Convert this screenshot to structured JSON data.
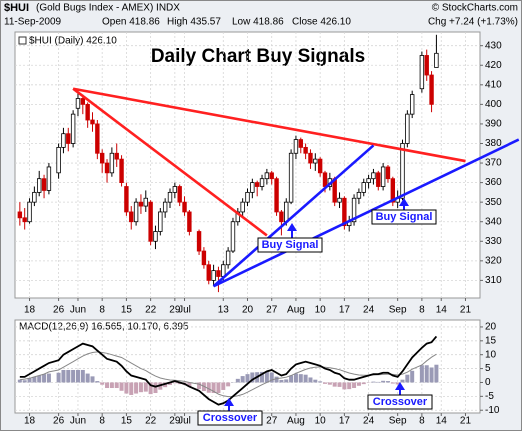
{
  "header": {
    "symbol": "$HUI",
    "name": "(Gold Bugs Index - AMEX) INDX",
    "date": "11-Sep-2009",
    "open": "Open 418.86",
    "high": "High 435.57",
    "low": "Low 418.86",
    "close": "Close 426.10",
    "change": "Chg +7.24 (+1.73%)",
    "source": "© StockCharts.com"
  },
  "chart_data": [
    {
      "type": "candlestick",
      "title": "Daily Chart Buy Signals",
      "legend": "$HUI (Daily) 426.10",
      "x": [
        "2009-05-14",
        "2009-05-15",
        "2009-05-18",
        "2009-05-19",
        "2009-05-20",
        "2009-05-21",
        "2009-05-22",
        "2009-05-26",
        "2009-05-27",
        "2009-05-28",
        "2009-05-29",
        "2009-06-01",
        "2009-06-02",
        "2009-06-03",
        "2009-06-04",
        "2009-06-05",
        "2009-06-08",
        "2009-06-09",
        "2009-06-10",
        "2009-06-11",
        "2009-06-12",
        "2009-06-15",
        "2009-06-16",
        "2009-06-17",
        "2009-06-18",
        "2009-06-19",
        "2009-06-22",
        "2009-06-23",
        "2009-06-24",
        "2009-06-25",
        "2009-06-26",
        "2009-06-29",
        "2009-06-30",
        "2009-07-01",
        "2009-07-02",
        "2009-07-06",
        "2009-07-07",
        "2009-07-08",
        "2009-07-09",
        "2009-07-10",
        "2009-07-13",
        "2009-07-14",
        "2009-07-15",
        "2009-07-16",
        "2009-07-17",
        "2009-07-20",
        "2009-07-21",
        "2009-07-22",
        "2009-07-23",
        "2009-07-24",
        "2009-07-27",
        "2009-07-28",
        "2009-07-29",
        "2009-07-30",
        "2009-07-31",
        "2009-08-03",
        "2009-08-04",
        "2009-08-05",
        "2009-08-06",
        "2009-08-07",
        "2009-08-10",
        "2009-08-11",
        "2009-08-12",
        "2009-08-13",
        "2009-08-14",
        "2009-08-17",
        "2009-08-18",
        "2009-08-19",
        "2009-08-20",
        "2009-08-21",
        "2009-08-24",
        "2009-08-25",
        "2009-08-26",
        "2009-08-27",
        "2009-08-28",
        "2009-08-31",
        "2009-09-01",
        "2009-09-02",
        "2009-09-03",
        "2009-09-04",
        "2009-09-08",
        "2009-09-09",
        "2009-09-10",
        "2009-09-11"
      ],
      "ohlc": [
        [
          345,
          350,
          338,
          342
        ],
        [
          342,
          347,
          336,
          340
        ],
        [
          340,
          352,
          339,
          350
        ],
        [
          350,
          358,
          348,
          355
        ],
        [
          355,
          366,
          353,
          362
        ],
        [
          362,
          364,
          352,
          356
        ],
        [
          356,
          370,
          354,
          368
        ],
        [
          365,
          380,
          362,
          378
        ],
        [
          378,
          388,
          375,
          385
        ],
        [
          385,
          388,
          376,
          380
        ],
        [
          380,
          397,
          378,
          395
        ],
        [
          398,
          406,
          394,
          403
        ],
        [
          403,
          405,
          395,
          400
        ],
        [
          400,
          401,
          388,
          392
        ],
        [
          392,
          396,
          386,
          390
        ],
        [
          390,
          392,
          372,
          375
        ],
        [
          375,
          377,
          365,
          370
        ],
        [
          370,
          372,
          360,
          365
        ],
        [
          365,
          378,
          363,
          375
        ],
        [
          375,
          380,
          368,
          372
        ],
        [
          372,
          374,
          358,
          360
        ],
        [
          358,
          360,
          343,
          345
        ],
        [
          345,
          348,
          336,
          340
        ],
        [
          340,
          352,
          338,
          350
        ],
        [
          350,
          354,
          344,
          348
        ],
        [
          348,
          356,
          345,
          352
        ],
        [
          350,
          351,
          328,
          330
        ],
        [
          330,
          338,
          326,
          335
        ],
        [
          335,
          347,
          333,
          345
        ],
        [
          345,
          352,
          342,
          350
        ],
        [
          350,
          357,
          347,
          355
        ],
        [
          355,
          360,
          352,
          358
        ],
        [
          358,
          359,
          348,
          350
        ],
        [
          350,
          353,
          343,
          345
        ],
        [
          345,
          346,
          333,
          335
        ],
        [
          335,
          336,
          323,
          325
        ],
        [
          325,
          327,
          316,
          318
        ],
        [
          318,
          320,
          308,
          310
        ],
        [
          310,
          318,
          307,
          315
        ],
        [
          315,
          317,
          304,
          312
        ],
        [
          312,
          320,
          310,
          318
        ],
        [
          318,
          327,
          316,
          325
        ],
        [
          325,
          342,
          324,
          340
        ],
        [
          340,
          347,
          338,
          345
        ],
        [
          345,
          352,
          342,
          350
        ],
        [
          350,
          357,
          348,
          355
        ],
        [
          355,
          362,
          352,
          360
        ],
        [
          360,
          361,
          353,
          358
        ],
        [
          358,
          364,
          356,
          362
        ],
        [
          362,
          367,
          359,
          365
        ],
        [
          365,
          366,
          359,
          362
        ],
        [
          362,
          363,
          343,
          345
        ],
        [
          345,
          346,
          333,
          340
        ],
        [
          340,
          352,
          338,
          350
        ],
        [
          350,
          377,
          349,
          375
        ],
        [
          375,
          384,
          372,
          382
        ],
        [
          382,
          383,
          375,
          378
        ],
        [
          378,
          380,
          372,
          375
        ],
        [
          375,
          377,
          367,
          370
        ],
        [
          370,
          375,
          366,
          372
        ],
        [
          372,
          373,
          363,
          365
        ],
        [
          365,
          366,
          355,
          358
        ],
        [
          358,
          365,
          356,
          362
        ],
        [
          362,
          363,
          348,
          350
        ],
        [
          350,
          355,
          347,
          352
        ],
        [
          352,
          353,
          336,
          338
        ],
        [
          338,
          343,
          335,
          340
        ],
        [
          340,
          354,
          338,
          352
        ],
        [
          352,
          357,
          349,
          355
        ],
        [
          355,
          362,
          353,
          360
        ],
        [
          360,
          364,
          357,
          362
        ],
        [
          362,
          367,
          359,
          365
        ],
        [
          365,
          366,
          356,
          358
        ],
        [
          358,
          370,
          356,
          368
        ],
        [
          368,
          369,
          360,
          362
        ],
        [
          362,
          363,
          348,
          350
        ],
        [
          350,
          356,
          347,
          352
        ],
        [
          352,
          382,
          351,
          380
        ],
        [
          380,
          397,
          378,
          395
        ],
        [
          395,
          407,
          393,
          405
        ],
        [
          408,
          427,
          406,
          425
        ],
        [
          425,
          428,
          412,
          415
        ],
        [
          415,
          417,
          396,
          400
        ],
        [
          418.86,
          435.57,
          418.86,
          426.1
        ]
      ],
      "up_color": "#000000",
      "down_color": "#cc0000",
      "xlim": [
        "2009-05-13",
        "2009-09-24"
      ],
      "xticks": [
        {
          "value": "2009-05-18",
          "label": "18"
        },
        {
          "value": "2009-05-26",
          "label": "26"
        },
        {
          "value": "2009-06-01",
          "label": "Jun"
        },
        {
          "value": "2009-06-08",
          "label": "8"
        },
        {
          "value": "2009-06-15",
          "label": "15"
        },
        {
          "value": "2009-06-22",
          "label": "22"
        },
        {
          "value": "2009-06-29",
          "label": "29"
        },
        {
          "value": "2009-07-01",
          "label": "Jul"
        },
        {
          "value": "2009-07-13",
          "label": "13"
        },
        {
          "value": "2009-07-20",
          "label": "20"
        },
        {
          "value": "2009-07-27",
          "label": "27"
        },
        {
          "value": "2009-08-03",
          "label": "Aug"
        },
        {
          "value": "2009-08-10",
          "label": "10"
        },
        {
          "value": "2009-08-17",
          "label": "17"
        },
        {
          "value": "2009-08-24",
          "label": "24"
        },
        {
          "value": "2009-09-01",
          "label": "Sep"
        },
        {
          "value": "2009-09-08",
          "label": "8"
        },
        {
          "value": "2009-09-14",
          "label": "14"
        },
        {
          "value": "2009-09-21",
          "label": "21"
        }
      ],
      "ylim": [
        301,
        437
      ],
      "yticks": [
        310,
        320,
        330,
        340,
        350,
        360,
        370,
        380,
        390,
        400,
        410,
        420,
        430
      ],
      "grid": true,
      "trendlines": [
        {
          "color": "#ff2020",
          "from": [
            "2009-05-29",
            408
          ],
          "to": [
            "2009-07-24",
            333
          ]
        },
        {
          "color": "#ff2020",
          "from": [
            "2009-05-29",
            408
          ],
          "to": [
            "2009-09-21",
            371
          ]
        },
        {
          "color": "#1a1aff",
          "from": [
            "2009-07-09",
            307
          ],
          "to": [
            "2009-08-25",
            379
          ]
        },
        {
          "color": "#1a1aff",
          "from": [
            "2009-07-09",
            307
          ],
          "to": [
            "2009-10-06",
            382
          ]
        }
      ],
      "annotations": [
        "Buy Signal",
        "Buy Signal"
      ]
    },
    {
      "type": "macd",
      "legend": "MACD(12,26,9) 16.565, 10.170, 6.395",
      "macd": {
        "color": "#000000",
        "values": [
          2,
          2,
          3,
          4,
          5,
          6,
          7,
          8,
          10,
          11,
          12,
          13,
          14,
          13.5,
          13,
          11.5,
          10,
          8.5,
          8,
          7.5,
          6,
          4,
          2.5,
          2,
          1.5,
          1,
          -1,
          -1.5,
          -1,
          -0.5,
          0,
          0.5,
          0,
          -0.5,
          -1.5,
          -3,
          -4.5,
          -6,
          -7,
          -8,
          -7.5,
          -6.5,
          -5,
          -3.5,
          -2,
          -0.5,
          1,
          2,
          3,
          4,
          4.5,
          3.5,
          2.5,
          3,
          5,
          6.5,
          7,
          7.5,
          7,
          6.5,
          6,
          5,
          4.5,
          3.5,
          3,
          1.5,
          1,
          1,
          1.5,
          2,
          2.5,
          3,
          3,
          3.5,
          3.5,
          2.5,
          2,
          4,
          6.5,
          9,
          12.5,
          14,
          14.5,
          16.565
        ]
      },
      "signal": {
        "color": "#888888",
        "values": [
          1,
          1.2,
          1.5,
          2,
          2.5,
          3,
          3.8,
          4.5,
          5.5,
          6.5,
          7.5,
          8.5,
          9.5,
          10.3,
          10.8,
          11,
          10.8,
          10.5,
          10,
          9.5,
          9,
          8,
          7,
          6,
          5,
          4.3,
          3.2,
          2.3,
          1.6,
          1.2,
          0.9,
          0.8,
          0.6,
          0.4,
          0,
          -0.6,
          -1.4,
          -2.3,
          -3.2,
          -4.2,
          -4.8,
          -5.1,
          -5.1,
          -4.8,
          -4.3,
          -3.5,
          -2.6,
          -1.7,
          -0.8,
          0,
          0.9,
          1.4,
          1.6,
          1.9,
          2.5,
          3.3,
          4,
          4.7,
          5.2,
          5.5,
          5.6,
          5.5,
          5.3,
          5,
          4.6,
          4,
          3.4,
          3,
          2.7,
          2.6,
          2.6,
          2.7,
          2.8,
          2.9,
          3,
          2.9,
          2.7,
          3,
          3.7,
          4.8,
          6.3,
          7.8,
          9.1,
          10.17
        ]
      },
      "histogram": {
        "color": "#9a9ab6",
        "negative_color": "#c8a2b4",
        "values": [
          1,
          0.8,
          1.5,
          2,
          2.5,
          3,
          3.2,
          3.5,
          4.5,
          4.5,
          4.5,
          4.5,
          4.5,
          3.2,
          2.2,
          0.5,
          -0.8,
          -2,
          -2,
          -2,
          -3,
          -4,
          -4.5,
          -4,
          -3.5,
          -3.3,
          -4.2,
          -3.8,
          -2.6,
          -1.7,
          -0.9,
          -0.3,
          -0.6,
          -0.9,
          -1.5,
          -2.4,
          -3.1,
          -3.7,
          -3.8,
          -3.8,
          -2.7,
          -1.4,
          0.1,
          1.3,
          2.3,
          3,
          3.6,
          3.7,
          3.8,
          4,
          3.6,
          2.1,
          0.9,
          1.1,
          2.5,
          3.2,
          3,
          2.8,
          1.8,
          1,
          0.4,
          -0.5,
          -0.8,
          -1.5,
          -1.6,
          -2.5,
          -2.4,
          -2,
          -1.2,
          -0.6,
          -0.1,
          0.3,
          0.2,
          0.6,
          0.5,
          -0.4,
          -0.7,
          1,
          2.8,
          4.2,
          6.2,
          6.2,
          5.4,
          6.395
        ]
      },
      "ylim": [
        -11,
        22.5
      ],
      "yticks": [
        -10,
        -5,
        0,
        5,
        10,
        15,
        20
      ],
      "grid": true,
      "annotations": [
        "Crossover",
        "Crossover"
      ]
    }
  ]
}
